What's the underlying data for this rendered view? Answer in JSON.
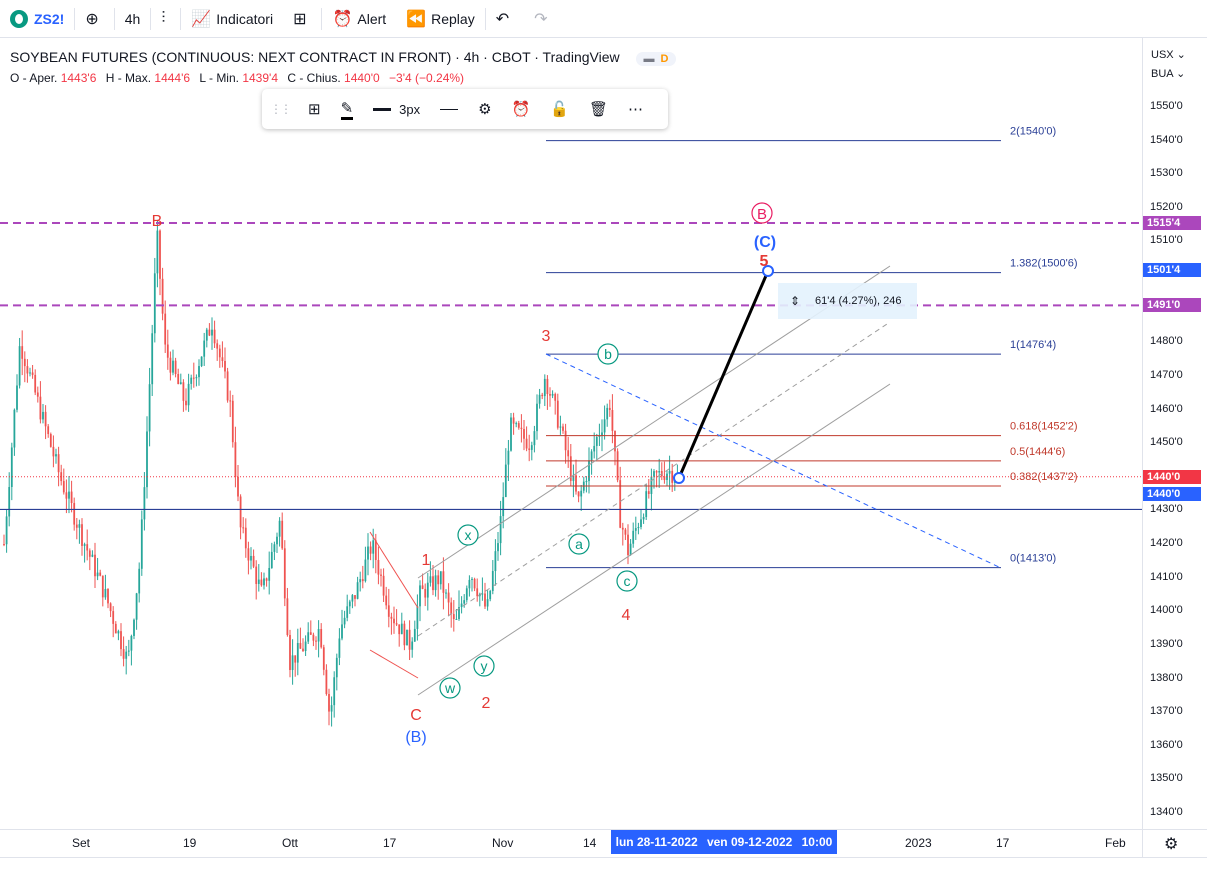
{
  "toolbar": {
    "symbol": "ZS2!",
    "interval": "4h",
    "indicators_label": "Indicatori",
    "alert_label": "Alert",
    "replay_label": "Replay"
  },
  "chart_info": {
    "title": "SOYBEAN FUTURES (CONTINUOUS: NEXT CONTRACT IN FRONT) · 4h · CBOT · TradingView",
    "badge_d": "D",
    "ohlc": {
      "open_label": "O - Aper.",
      "open": "1443'6",
      "high_label": "H - Max.",
      "high": "1444'6",
      "low_label": "L - Min.",
      "low": "1439'4",
      "close_label": "C - Chius.",
      "close": "1440'0",
      "change": "−3'4 (−0.24%)"
    }
  },
  "drawing_toolbar": {
    "width_label": "3px"
  },
  "axis": {
    "currency": "USX",
    "exchange": "BUA",
    "price_ticks": [
      "1550'0",
      "1540'0",
      "1530'0",
      "1520'0",
      "1510'0",
      "1480'0",
      "1470'0",
      "1460'0",
      "1450'0",
      "1430'0",
      "1420'0",
      "1410'0",
      "1400'0",
      "1390'0",
      "1380'0",
      "1370'0",
      "1360'0",
      "1350'0",
      "1340'0"
    ],
    "price_tags": [
      {
        "text": "1515'4",
        "color": "#ab47bc",
        "price": 1515.5
      },
      {
        "text": "1501'4",
        "color": "#2962ff",
        "price": 1501.5
      },
      {
        "text": "1491'0",
        "color": "#ab47bc",
        "price": 1491
      },
      {
        "text": "1440'0",
        "color": "#f23645",
        "price": 1440
      },
      {
        "text": "1440'0",
        "color": "#2962ff",
        "price": 1434.8
      }
    ],
    "time_ticks": [
      "Set",
      "19",
      "Ott",
      "17",
      "Nov",
      "14",
      "2023",
      "17",
      "Feb"
    ],
    "range_start": "lun 28-11-2022",
    "range_end": "ven 09-12-2022",
    "range_time": "10:00"
  },
  "fib": [
    {
      "label": "2(1540'0)",
      "price": 1540,
      "color": "#2a3f96"
    },
    {
      "label": "1.382(1500'6)",
      "price": 1500.75,
      "color": "#2a3f96"
    },
    {
      "label": "1(1476'4)",
      "price": 1476.5,
      "color": "#2a3f96"
    },
    {
      "label": "0.618(1452'2)",
      "price": 1452.25,
      "color": "#c0392b"
    },
    {
      "label": "0.5(1444'6)",
      "price": 1444.75,
      "color": "#c0392b"
    },
    {
      "label": "0.382(1437'2)",
      "price": 1437.25,
      "color": "#c0392b"
    },
    {
      "label": "0(1413'0)",
      "price": 1413,
      "color": "#2a3f96"
    }
  ],
  "measure_label": "61'4 (4.27%), 246",
  "waves": {
    "B_red": "B",
    "C_red": "C",
    "B_blue": "(B)",
    "one": "1",
    "two": "2",
    "three": "3",
    "four": "4",
    "five": "5",
    "C_blue": "(C)",
    "B_circle": "B",
    "w": "w",
    "x": "x",
    "y": "y",
    "a": "a",
    "b": "b",
    "c": "c"
  },
  "colors": {
    "up": "#26a69a",
    "down": "#ef5350",
    "wave_red": "#e53935",
    "wave_blue": "#2962ff",
    "wave_teal": "#089981",
    "magenta": "#ab47bc"
  }
}
